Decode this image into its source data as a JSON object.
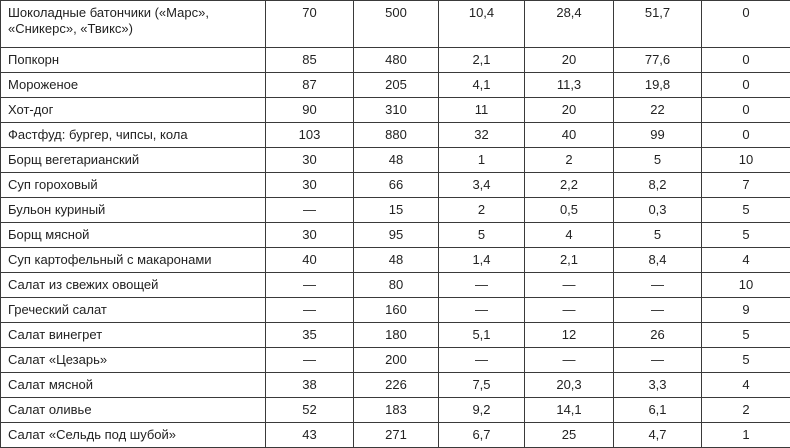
{
  "table": {
    "rows": [
      {
        "name": "Шоколадные батончики («Марс», «Сникерс», «Твикс»)",
        "values": [
          "70",
          "500",
          "10,4",
          "28,4",
          "51,7",
          "0"
        ]
      },
      {
        "name": "Попкорн",
        "values": [
          "85",
          "480",
          "2,1",
          "20",
          "77,6",
          "0"
        ]
      },
      {
        "name": "Мороженое",
        "values": [
          "87",
          "205",
          "4,1",
          "11,3",
          "19,8",
          "0"
        ]
      },
      {
        "name": "Хот-дог",
        "values": [
          "90",
          "310",
          "11",
          "20",
          "22",
          "0"
        ]
      },
      {
        "name": "Фастфуд: бургер, чипсы, кола",
        "values": [
          "103",
          "880",
          "32",
          "40",
          "99",
          "0"
        ]
      },
      {
        "name": "Борщ вегетарианский",
        "values": [
          "30",
          "48",
          "1",
          "2",
          "5",
          "10"
        ]
      },
      {
        "name": "Суп гороховый",
        "values": [
          "30",
          "66",
          "3,4",
          "2,2",
          "8,2",
          "7"
        ]
      },
      {
        "name": "Бульон куриный",
        "values": [
          "—",
          "15",
          "2",
          "0,5",
          "0,3",
          "5"
        ]
      },
      {
        "name": "Борщ мясной",
        "values": [
          "30",
          "95",
          "5",
          "4",
          "5",
          "5"
        ]
      },
      {
        "name": "Суп картофельный с макаронами",
        "values": [
          "40",
          "48",
          "1,4",
          "2,1",
          "8,4",
          "4"
        ]
      },
      {
        "name": "Салат из свежих овощей",
        "values": [
          "—",
          "80",
          "—",
          "—",
          "—",
          "10"
        ]
      },
      {
        "name": "Греческий салат",
        "values": [
          "—",
          "160",
          "—",
          "—",
          "—",
          "9"
        ]
      },
      {
        "name": "Салат винегрет",
        "values": [
          "35",
          "180",
          "5,1",
          "12",
          "26",
          "5"
        ]
      },
      {
        "name": "Салат «Цезарь»",
        "values": [
          "—",
          "200",
          "—",
          "—",
          "—",
          "5"
        ]
      },
      {
        "name": "Салат мясной",
        "values": [
          "38",
          "226",
          "7,5",
          "20,3",
          "3,3",
          "4"
        ]
      },
      {
        "name": "Салат оливье",
        "values": [
          "52",
          "183",
          "9,2",
          "14,1",
          "6,1",
          "2"
        ]
      },
      {
        "name": "Салат «Сельдь под шубой»",
        "values": [
          "43",
          "271",
          "6,7",
          "25",
          "4,7",
          "1"
        ]
      }
    ]
  }
}
